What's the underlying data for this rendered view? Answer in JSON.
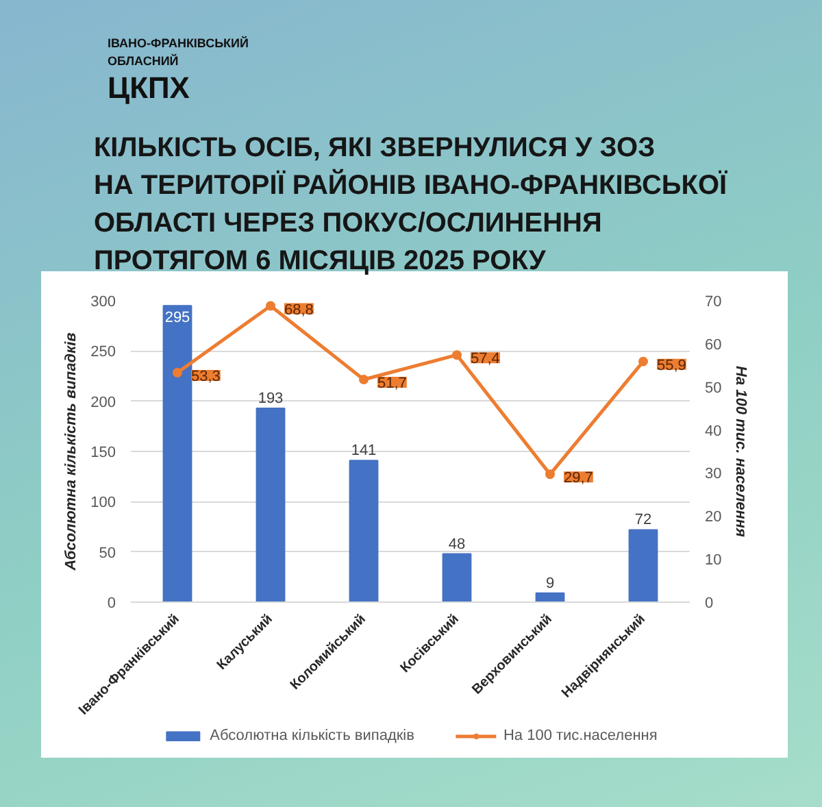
{
  "chart_data": {
    "type": "bar",
    "title": "КІЛЬКІСТЬ ОСІБ, ЯКІ ЗВЕРНУЛИСЯ У ЗОЗ\nНА ТЕРИТОРІЇ РАЙОНІВ ІВАНО-ФРАНКІВСЬКОЇ\nОБЛАСТІ ЧЕРЕЗ ПОКУС/ОСЛИНЕННЯ\nПРОТЯГОМ 6 МІСЯЦІВ 2025 РОКУ",
    "annotations": [
      "ІВАНО-ФРАНКІВСЬКИЙ\nОБЛАСНИЙ",
      "ЦКПХ"
    ],
    "categories": [
      "Івано-Франківський",
      "Калуський",
      "Коломийський",
      "Косівський",
      "Верховинський",
      "Надвірнянський"
    ],
    "series": [
      {
        "name": "Абсолютна кількість випадків",
        "color": "#4472c4",
        "values": [
          295,
          193,
          141,
          48,
          9,
          72
        ],
        "value_labels": [
          "295",
          "193",
          "141",
          "48",
          "9",
          "72"
        ]
      },
      {
        "name": "На 100 тис.населення",
        "type": "line",
        "axis": "y2",
        "color": "#ed7d31",
        "marker": "circle",
        "values": [
          53.3,
          68.8,
          51.7,
          57.4,
          29.7,
          55.9
        ],
        "value_labels": [
          "53,3",
          "68,8",
          "51,7",
          "57,4",
          "29,7",
          "55,9"
        ]
      }
    ],
    "ylabel": "Абсолютна кількість випадків",
    "y2label": "На 100 тис. населення",
    "ylim": [
      0,
      300
    ],
    "yticks": [
      0,
      50,
      100,
      150,
      200,
      250,
      300
    ],
    "y2lim": [
      0,
      70
    ],
    "y2ticks": [
      0,
      10,
      20,
      30,
      40,
      50,
      60,
      70
    ],
    "grid": "y",
    "legend": "bottom"
  }
}
